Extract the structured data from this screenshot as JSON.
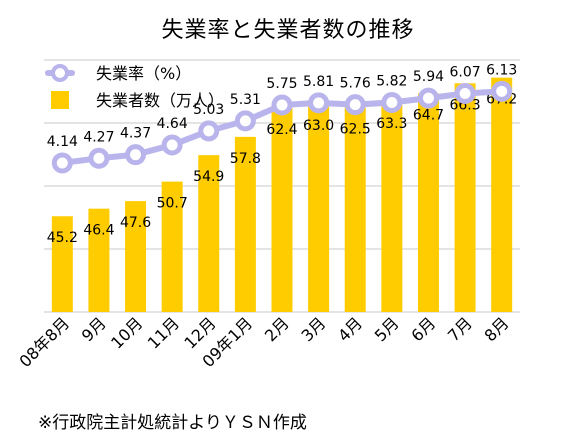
{
  "title": "失業率と失業者数の推移",
  "source_note": "※行政院主計処統計よりＹＳＮ作成",
  "chart_data": {
    "type": "bar+line",
    "categories": [
      "08年8月",
      "9月",
      "10月",
      "11月",
      "12月",
      "09年1月",
      "2月",
      "3月",
      "4月",
      "5月",
      "6月",
      "7月",
      "8月"
    ],
    "series": [
      {
        "name": "失業者数（万人）",
        "type": "bar",
        "color": "#ffcc00",
        "values": [
          45.2,
          46.4,
          47.6,
          50.7,
          54.9,
          57.8,
          62.4,
          63.0,
          62.5,
          63.3,
          64.7,
          66.3,
          67.2
        ],
        "labels": [
          "45.2",
          "46.4",
          "47.6",
          "50.7",
          "54.9",
          "57.8",
          "62.4",
          "63.0",
          "62.5",
          "63.3",
          "64.7",
          "66.3",
          "67.2"
        ],
        "ylim": [
          30,
          70
        ]
      },
      {
        "name": "失業率（%）",
        "type": "line",
        "color": "#b9b4ec",
        "values": [
          4.14,
          4.27,
          4.37,
          4.64,
          5.03,
          5.31,
          5.75,
          5.81,
          5.76,
          5.82,
          5.94,
          6.07,
          6.13
        ],
        "labels": [
          "4.14",
          "4.27",
          "4.37",
          "4.64",
          "5.03",
          "5.31",
          "5.75",
          "5.81",
          "5.76",
          "5.82",
          "5.94",
          "6.07",
          "6.13"
        ],
        "ylim": [
          0,
          7
        ]
      }
    ],
    "legend": {
      "position": "top-left"
    },
    "grid": "horizontal"
  }
}
